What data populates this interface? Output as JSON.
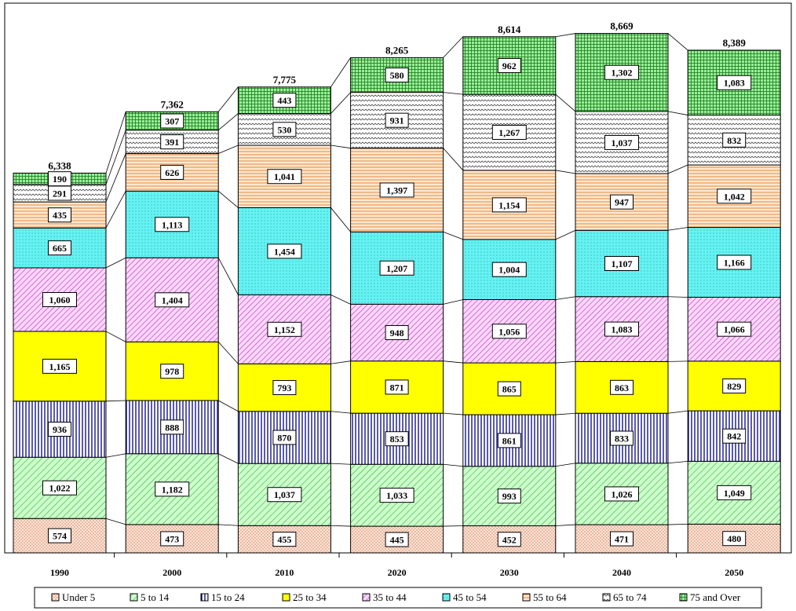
{
  "chart_data": {
    "type": "bar",
    "stacked": true,
    "categories": [
      "1990",
      "2000",
      "2010",
      "2020",
      "2030",
      "2040",
      "2050"
    ],
    "totals": [
      "6,338",
      "7,362",
      "7,775",
      "8,265",
      "8,614",
      "8,669",
      "8,389"
    ],
    "series": [
      {
        "name": "Under 5",
        "values": [
          574,
          473,
          455,
          445,
          452,
          471,
          480
        ],
        "labels": [
          "574",
          "473",
          "455",
          "445",
          "452",
          "471",
          "480"
        ],
        "color": "#ffe0d0",
        "pattern": "dots"
      },
      {
        "name": "5 to 14",
        "values": [
          1022,
          1182,
          1037,
          1033,
          993,
          1026,
          1049
        ],
        "labels": [
          "1,022",
          "1,182",
          "1,037",
          "1,033",
          "993",
          "1,026",
          "1,049"
        ],
        "color": "#ccffcc",
        "pattern": "diag-green"
      },
      {
        "name": "15 to 24",
        "values": [
          936,
          888,
          870,
          853,
          861,
          833,
          842
        ],
        "labels": [
          "936",
          "888",
          "870",
          "853",
          "861",
          "833",
          "842"
        ],
        "color": "#ffffff",
        "pattern": "vlines-navy"
      },
      {
        "name": "25 to 34",
        "values": [
          1165,
          978,
          793,
          871,
          865,
          863,
          829
        ],
        "labels": [
          "1,165",
          "978",
          "793",
          "871",
          "865",
          "863",
          "829"
        ],
        "color": "#ffff00",
        "pattern": "solid"
      },
      {
        "name": "35 to 44",
        "values": [
          1060,
          1404,
          1152,
          948,
          1056,
          1083,
          1066
        ],
        "labels": [
          "1,060",
          "1,404",
          "1,152",
          "948",
          "1,056",
          "1,083",
          "1,066"
        ],
        "color": "#ffccff",
        "pattern": "diag-purple"
      },
      {
        "name": "45 to 54",
        "values": [
          665,
          1113,
          1454,
          1207,
          1004,
          1107,
          1166
        ],
        "labels": [
          "665",
          "1,113",
          "1,454",
          "1,207",
          "1,004",
          "1,107",
          "1,166"
        ],
        "color": "#66ffff",
        "pattern": "dots-cyan"
      },
      {
        "name": "55 to 64",
        "values": [
          435,
          626,
          1041,
          1397,
          1154,
          947,
          1042
        ],
        "labels": [
          "435",
          "626",
          "1,041",
          "1,397",
          "1,154",
          "947",
          "1,042"
        ],
        "color": "#ffe6cc",
        "pattern": "hlines-orange"
      },
      {
        "name": "65 to 74",
        "values": [
          291,
          391,
          530,
          931,
          1267,
          1037,
          832
        ],
        "labels": [
          "291",
          "391",
          "530",
          "931",
          "1,267",
          "1,037",
          "832"
        ],
        "color": "#ffffff",
        "pattern": "waves"
      },
      {
        "name": "75 and Over",
        "values": [
          190,
          307,
          443,
          580,
          962,
          1302,
          1083
        ],
        "labels": [
          "190",
          "307",
          "443",
          "580",
          "962",
          "1,302",
          "1,083"
        ],
        "color": "#99ee99",
        "pattern": "grid-green"
      }
    ],
    "ylim": [
      0,
      9000
    ],
    "grid": false,
    "legend_placement": "bottom"
  }
}
